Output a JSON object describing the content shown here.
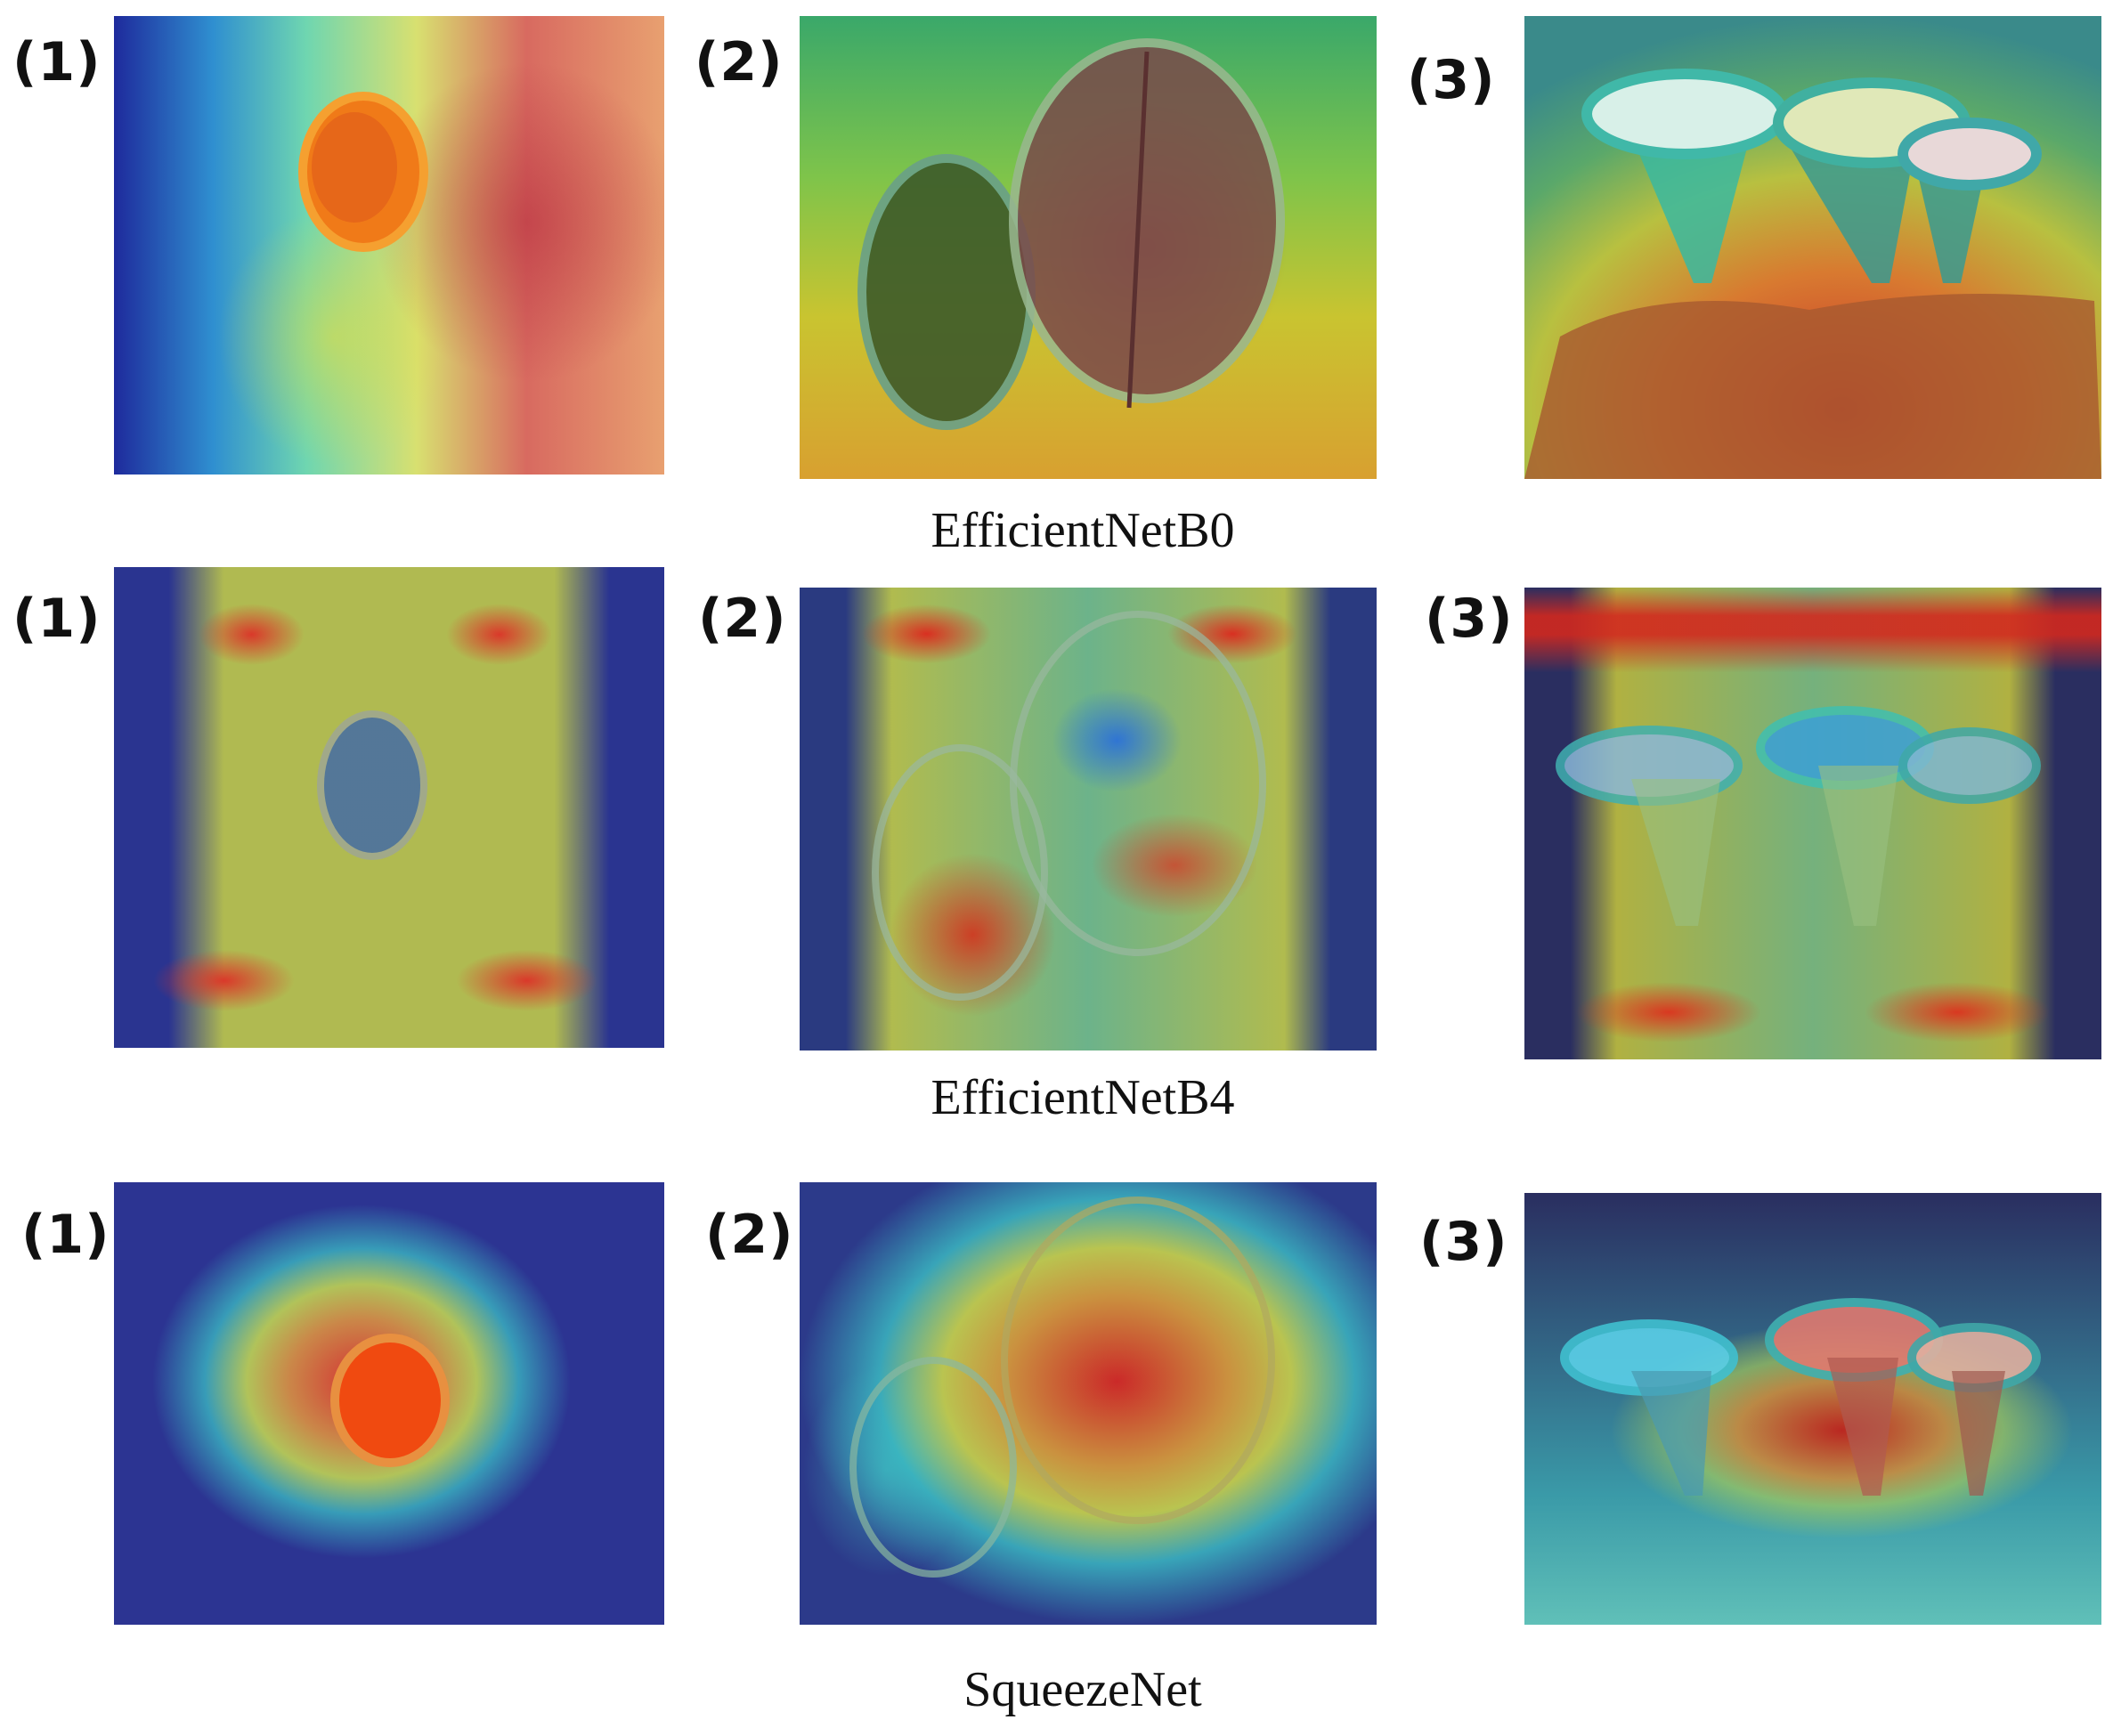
{
  "rows": [
    {
      "model": "EfficientNetB0",
      "panels": [
        {
          "label": "(1)"
        },
        {
          "label": "(2)"
        },
        {
          "label": "(3)"
        }
      ]
    },
    {
      "model": "EfficientNetB4",
      "panels": [
        {
          "label": "(1)"
        },
        {
          "label": "(2)"
        },
        {
          "label": "(3)"
        }
      ]
    },
    {
      "model": "SqueezeNet",
      "panels": [
        {
          "label": "(1)"
        },
        {
          "label": "(2)"
        },
        {
          "label": "(3)"
        }
      ]
    }
  ],
  "colors": {
    "heat_low": "#1e2a9c",
    "heat_mid_low": "#2fc7d9",
    "heat_mid": "#e6e03a",
    "heat_high": "#e8361c",
    "background": "#ffffff",
    "text": "#111111"
  }
}
